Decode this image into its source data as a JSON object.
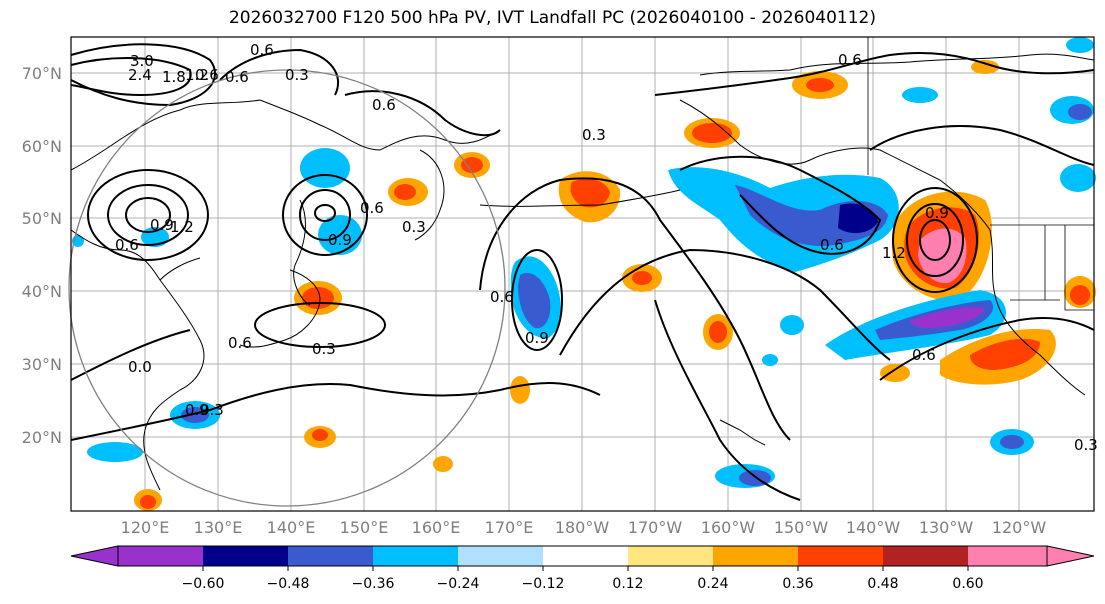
{
  "title": "2026032700 F120 500 hPa PV, IVT Landfall PC (2026040100 - 2026040112)",
  "colors": {
    "map_bg": "#ffffff",
    "grid": "#b0b0b0",
    "coast": "#000000",
    "contour": "#000000",
    "circle": "#808080",
    "levels": [
      "#9932cc",
      "#00008b",
      "#3a5bd0",
      "#00bfff",
      "#b0e0ff",
      "#ffffff",
      "#ffe680",
      "#ffa500",
      "#ff4000",
      "#b22222",
      "#ff80b0"
    ]
  },
  "lat_labels": [
    "70°N",
    "60°N",
    "50°N",
    "40°N",
    "30°N",
    "20°N"
  ],
  "lon_labels": [
    "120°E",
    "130°E",
    "140°E",
    "150°E",
    "160°E",
    "170°E",
    "180°W",
    "170°W",
    "160°W",
    "150°W",
    "140°W",
    "130°W",
    "120°W"
  ],
  "colorbar": {
    "ticks": [
      "−0.60",
      "−0.48",
      "−0.36",
      "−0.24",
      "−0.12",
      "0.12",
      "0.24",
      "0.36",
      "0.48",
      "0.60"
    ]
  },
  "contour_labels": [
    "3.0",
    "2.4",
    "1.8",
    "1.2",
    "0.6",
    "0.3",
    "0.6",
    "0.6",
    "0.3",
    "0.6",
    "0.6",
    "1.2",
    "0.9",
    "0.6",
    "0.9",
    "0.3",
    "0.6",
    "0.9",
    "0.3",
    "0.6",
    "0.9",
    "1.2",
    "0.6",
    "0.6",
    "0.3",
    "0.3",
    "0.6",
    "0.0",
    "0.9"
  ]
}
